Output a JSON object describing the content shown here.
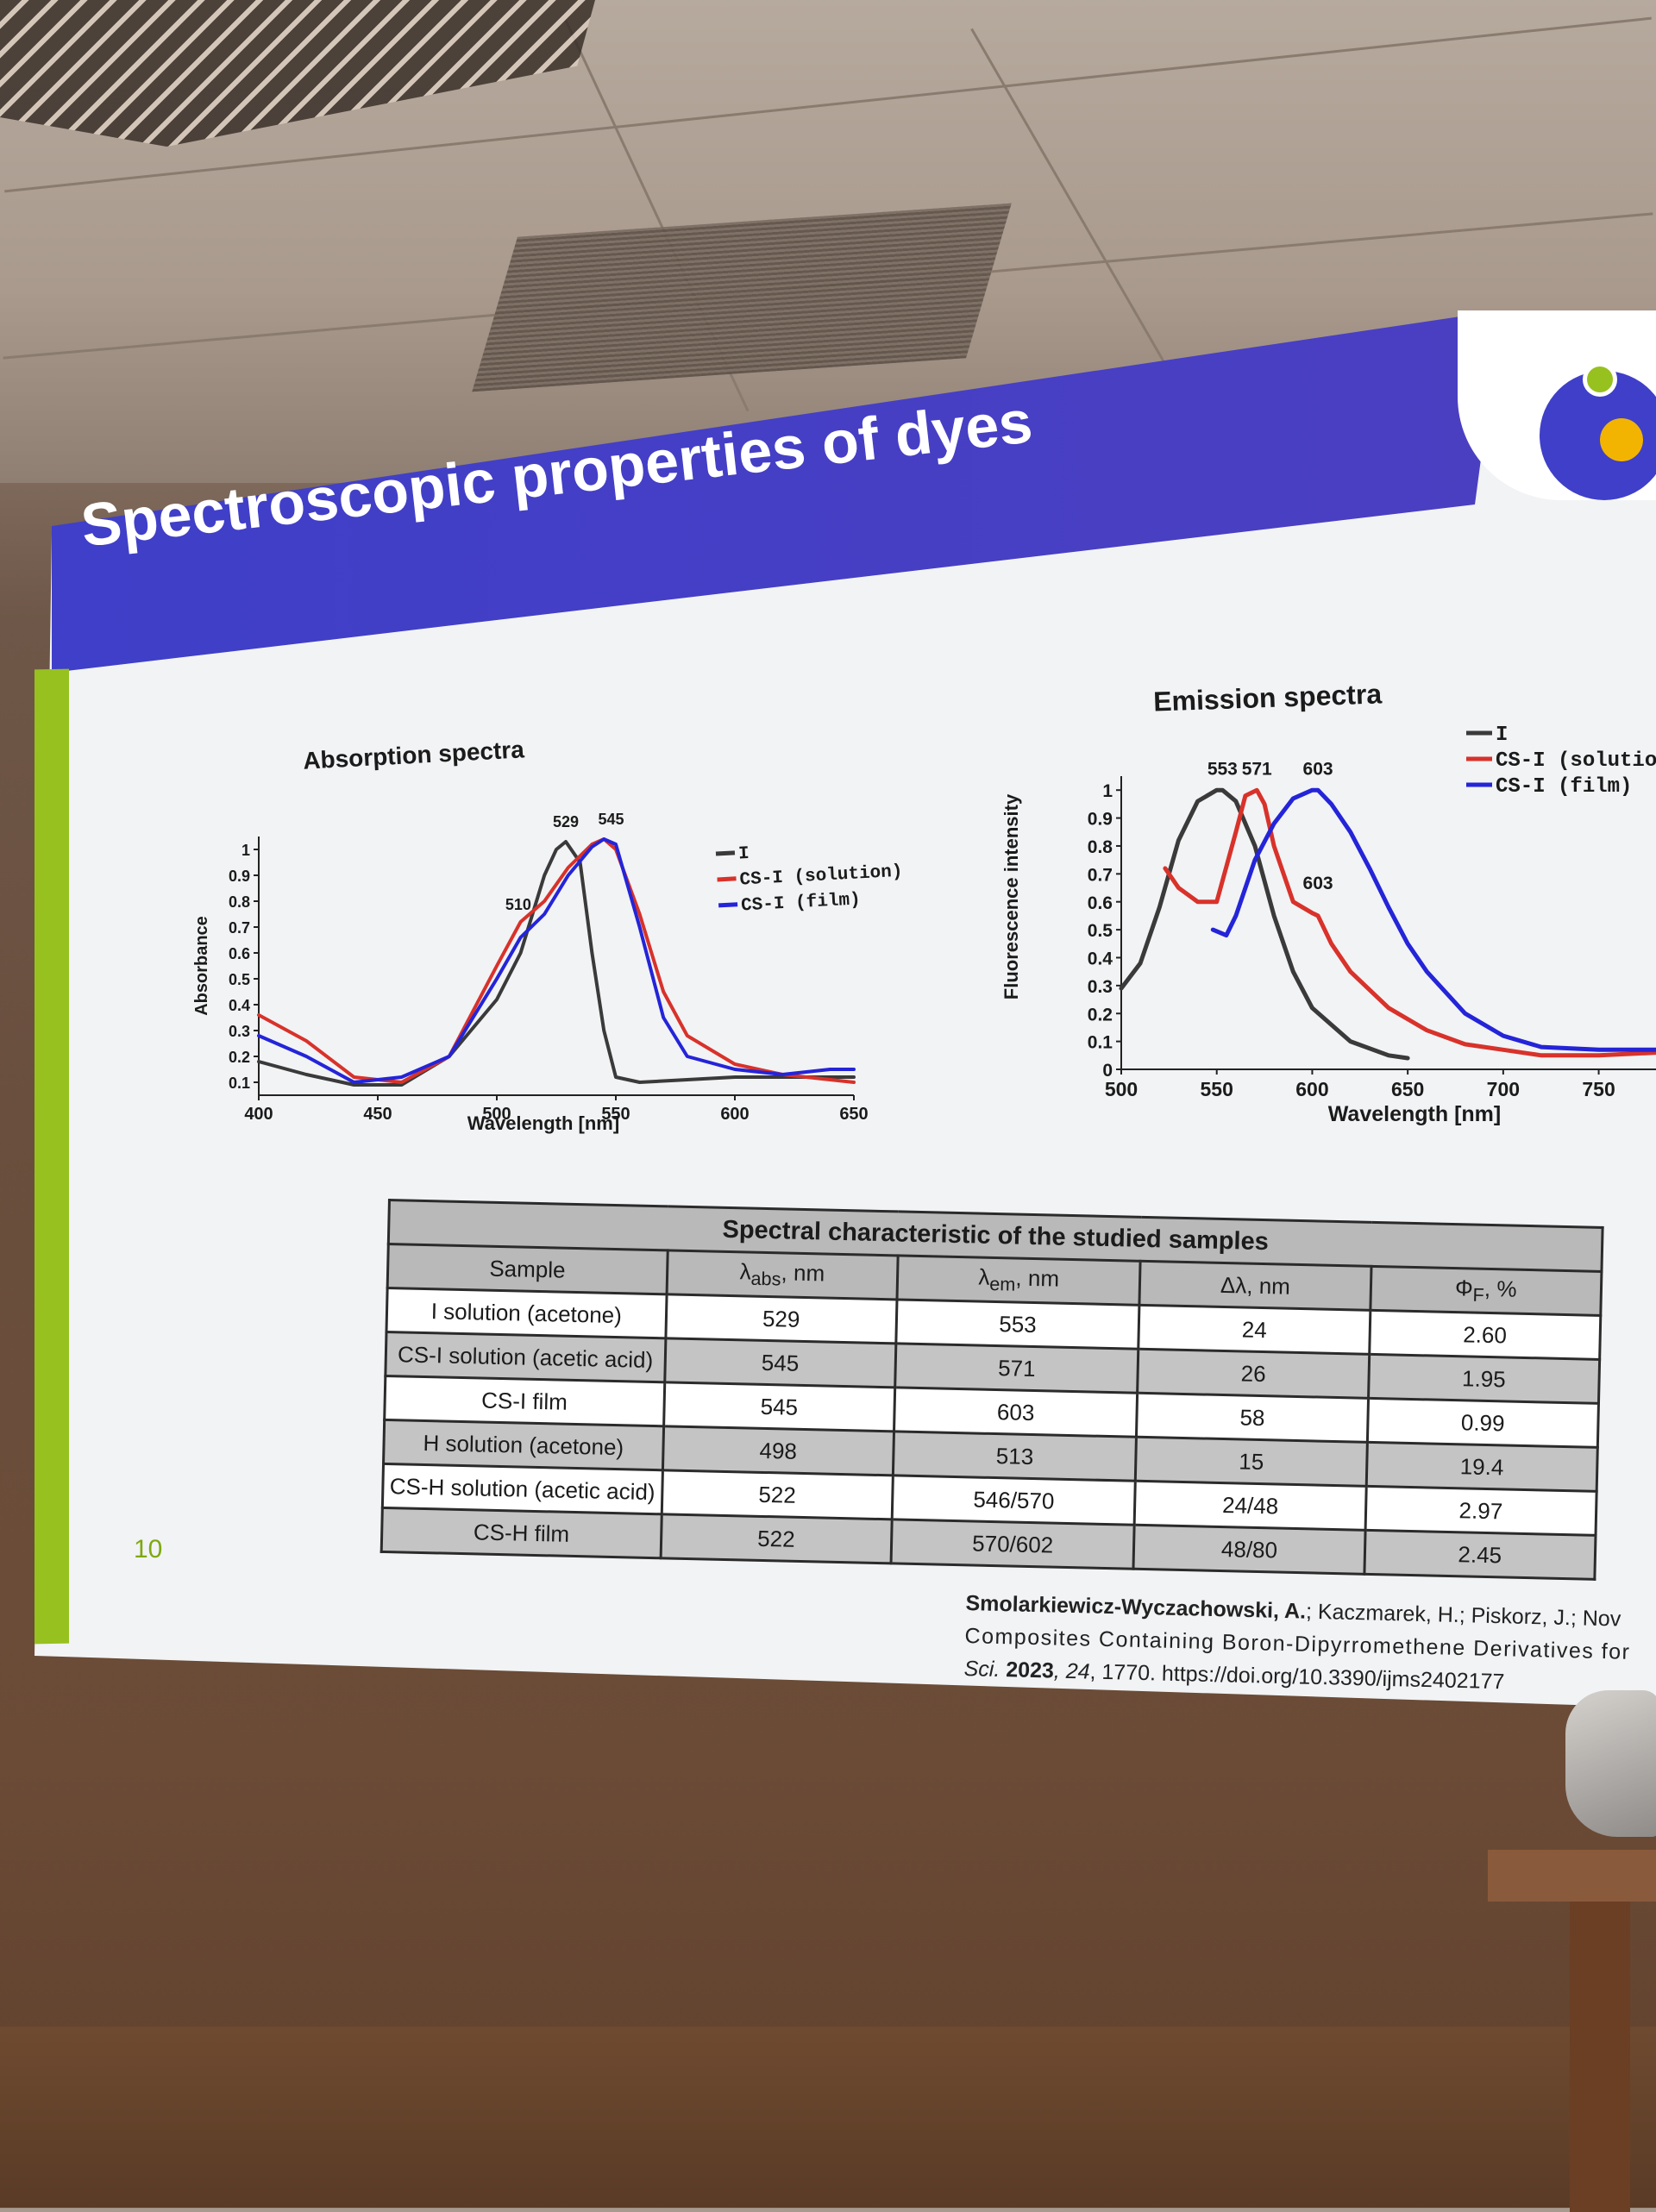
{
  "slide": {
    "title": "Spectroscopic properties of dyes",
    "page_number": "10"
  },
  "absorption": {
    "title": "Absorption spectra",
    "xlabel": "Wavelength [nm]",
    "ylabel": "Absorbance",
    "xticks": [
      "400",
      "450",
      "500",
      "550",
      "600",
      "650"
    ],
    "yticks": [
      "0.1",
      "0.2",
      "0.3",
      "0.4",
      "0.5",
      "0.6",
      "0.7",
      "0.8",
      "0.9",
      "1"
    ],
    "peak_labels": [
      "529",
      "545",
      "510"
    ],
    "legend": [
      "I",
      "CS-I (solution)",
      "CS-I (film)"
    ]
  },
  "emission": {
    "title": "Emission spectra",
    "xlabel": "Wavelength [nm]",
    "ylabel": "Fluorescence intensity",
    "xticks": [
      "500",
      "550",
      "600",
      "650",
      "700",
      "750"
    ],
    "yticks": [
      "0",
      "0.1",
      "0.2",
      "0.3",
      "0.4",
      "0.5",
      "0.6",
      "0.7",
      "0.8",
      "0.9",
      "1"
    ],
    "peak_labels": [
      "553",
      "571",
      "603",
      "603"
    ],
    "legend": [
      "I",
      "CS-I (solution)",
      "CS-I (film)"
    ]
  },
  "table": {
    "caption": "Spectral characteristic of the studied samples",
    "headers": {
      "sample": "Sample",
      "abs": "λ",
      "abs_sub": "abs",
      "abs_unit": ", nm",
      "em": "λ",
      "em_sub": "em",
      "em_unit": ", nm",
      "delta": "Δλ, nm",
      "phi": "Φ",
      "phi_sub": "F",
      "phi_unit": ", %"
    },
    "rows": [
      {
        "sample": "I solution (acetone)",
        "abs": "529",
        "em": "553",
        "delta": "24",
        "phi": "2.60"
      },
      {
        "sample": "CS-I solution (acetic acid)",
        "abs": "545",
        "em": "571",
        "delta": "26",
        "phi": "1.95"
      },
      {
        "sample": "CS-I film",
        "abs": "545",
        "em": "603",
        "delta": "58",
        "phi": "0.99"
      },
      {
        "sample": "H solution (acetone)",
        "abs": "498",
        "em": "513",
        "delta": "15",
        "phi": "19.4"
      },
      {
        "sample": "CS-H solution (acetic acid)",
        "abs": "522",
        "em": "546/570",
        "delta": "24/48",
        "phi": "2.97"
      },
      {
        "sample": "CS-H film",
        "abs": "522",
        "em": "570/602",
        "delta": "48/80",
        "phi": "2.45"
      }
    ]
  },
  "citation": {
    "line1_bold": "Smolarkiewicz-Wyczachowski, A.",
    "line1_rest": "; Kaczmarek, H.; Piskorz, J.; Nov",
    "line2": "Composites Containing Boron-Dipyrromethene Derivatives for",
    "line3_a": "Sci. ",
    "line3_year": "2023",
    "line3_vol": ", 24",
    "line3_rest": ", 1770. https://doi.org/10.3390/ijms2402177"
  },
  "colors": {
    "I": "#3a3a3a",
    "CS-I (solution)": "#d8322a",
    "CS-I (film)": "#2424d8",
    "title_bar": "#4040c8",
    "accent_green": "#97c11f"
  },
  "chart_data": [
    {
      "type": "line",
      "title": "Absorption spectra",
      "xlabel": "Wavelength [nm]",
      "ylabel": "Absorbance",
      "xlim": [
        400,
        650
      ],
      "ylim": [
        0.05,
        1.05
      ],
      "series": [
        {
          "name": "I",
          "x": [
            400,
            420,
            440,
            460,
            480,
            500,
            510,
            520,
            525,
            529,
            535,
            540,
            545,
            550,
            560,
            580,
            600,
            620,
            650
          ],
          "y": [
            0.18,
            0.13,
            0.09,
            0.09,
            0.2,
            0.42,
            0.6,
            0.9,
            1.0,
            1.03,
            0.95,
            0.6,
            0.3,
            0.12,
            0.1,
            0.11,
            0.12,
            0.12,
            0.12
          ]
        },
        {
          "name": "CS-I (solution)",
          "x": [
            400,
            420,
            440,
            460,
            480,
            500,
            510,
            520,
            530,
            540,
            545,
            550,
            560,
            570,
            580,
            600,
            620,
            650
          ],
          "y": [
            0.36,
            0.26,
            0.12,
            0.1,
            0.2,
            0.55,
            0.72,
            0.8,
            0.93,
            1.02,
            1.04,
            1.0,
            0.75,
            0.45,
            0.28,
            0.17,
            0.13,
            0.1
          ]
        },
        {
          "name": "CS-I (film)",
          "x": [
            400,
            420,
            440,
            460,
            480,
            500,
            510,
            520,
            530,
            540,
            545,
            550,
            560,
            570,
            580,
            600,
            620,
            640,
            650
          ],
          "y": [
            0.28,
            0.2,
            0.1,
            0.12,
            0.2,
            0.5,
            0.66,
            0.75,
            0.9,
            1.01,
            1.04,
            1.02,
            0.7,
            0.35,
            0.2,
            0.15,
            0.13,
            0.15,
            0.15
          ]
        }
      ]
    },
    {
      "type": "line",
      "title": "Emission spectra",
      "xlabel": "Wavelength [nm]",
      "ylabel": "Fluorescence intensity",
      "xlim": [
        500,
        780
      ],
      "ylim": [
        0,
        1.05
      ],
      "series": [
        {
          "name": "I",
          "x": [
            500,
            510,
            520,
            530,
            540,
            550,
            553,
            560,
            570,
            580,
            590,
            600,
            620,
            640,
            650
          ],
          "y": [
            0.29,
            0.38,
            0.58,
            0.82,
            0.96,
            1.0,
            1.0,
            0.96,
            0.8,
            0.55,
            0.35,
            0.22,
            0.1,
            0.05,
            0.04
          ]
        },
        {
          "name": "CS-I (solution)",
          "x": [
            523,
            530,
            540,
            550,
            560,
            565,
            571,
            575,
            580,
            590,
            600,
            603,
            610,
            620,
            640,
            660,
            680,
            700,
            720,
            750,
            780
          ],
          "y": [
            0.72,
            0.65,
            0.6,
            0.6,
            0.85,
            0.98,
            1.0,
            0.95,
            0.8,
            0.6,
            0.56,
            0.55,
            0.45,
            0.35,
            0.22,
            0.14,
            0.09,
            0.07,
            0.05,
            0.05,
            0.06
          ]
        },
        {
          "name": "CS-I (film)",
          "x": [
            548,
            555,
            560,
            570,
            580,
            590,
            600,
            603,
            610,
            620,
            630,
            640,
            650,
            660,
            680,
            700,
            720,
            750,
            780
          ],
          "y": [
            0.5,
            0.48,
            0.55,
            0.75,
            0.88,
            0.97,
            1.0,
            1.0,
            0.95,
            0.85,
            0.72,
            0.58,
            0.45,
            0.35,
            0.2,
            0.12,
            0.08,
            0.07,
            0.07
          ]
        }
      ]
    },
    {
      "type": "table",
      "title": "Spectral characteristic of the studied samples",
      "columns": [
        "Sample",
        "λabs, nm",
        "λem, nm",
        "Δλ, nm",
        "ΦF, %"
      ],
      "rows": [
        [
          "I solution (acetone)",
          "529",
          "553",
          "24",
          "2.60"
        ],
        [
          "CS-I solution (acetic acid)",
          "545",
          "571",
          "26",
          "1.95"
        ],
        [
          "CS-I film",
          "545",
          "603",
          "58",
          "0.99"
        ],
        [
          "H solution (acetone)",
          "498",
          "513",
          "15",
          "19.4"
        ],
        [
          "CS-H solution (acetic acid)",
          "522",
          "546/570",
          "24/48",
          "2.97"
        ],
        [
          "CS-H film",
          "522",
          "570/602",
          "48/80",
          "2.45"
        ]
      ]
    }
  ]
}
